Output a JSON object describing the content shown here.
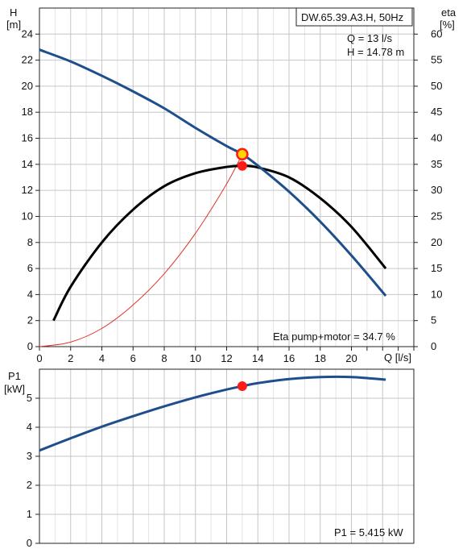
{
  "chart_data": [
    {
      "type": "line",
      "title": "DW.65.39.A3.H, 50Hz",
      "xlabel": "Q [l/s]",
      "ylabel_left_line1": "H",
      "ylabel_left_line2": "[m]",
      "ylabel_right_line1": "eta",
      "ylabel_right_line2": "[%]",
      "xlim": [
        0,
        24
      ],
      "ylim_left": [
        0,
        26
      ],
      "ylim_right": [
        0,
        65
      ],
      "x_ticks": [
        "0",
        "2",
        "4",
        "6",
        "8",
        "10",
        "12",
        "14",
        "16",
        "18",
        "20"
      ],
      "y_ticks_left": [
        "0",
        "2",
        "4",
        "6",
        "8",
        "10",
        "12",
        "14",
        "16",
        "18",
        "20",
        "22",
        "24"
      ],
      "y_ticks_right": [
        "0",
        "5",
        "10",
        "15",
        "20",
        "25",
        "30",
        "35",
        "40",
        "45",
        "50",
        "55",
        "60"
      ],
      "grid": true,
      "duty_text_q": "Q = 13 l/s",
      "duty_text_h": "H = 14.78 m",
      "eta_text": "Eta pump+motor = 34.7 %",
      "duty_point": {
        "q": 13,
        "h": 14.78,
        "eta": 34.7
      },
      "colors": {
        "head": "#1f4e8c",
        "eta": "#000000",
        "system": "#e0332a",
        "marker": "#ff1a1a",
        "marker_ring": "#ffd400"
      },
      "series": [
        {
          "key": "head",
          "axis": "left",
          "x": [
            0,
            2,
            4,
            6,
            8,
            10,
            12,
            13,
            14,
            16,
            18,
            20,
            22.2
          ],
          "y": [
            22.8,
            21.9,
            20.8,
            19.6,
            18.3,
            16.8,
            15.4,
            14.78,
            13.9,
            11.9,
            9.6,
            7.0,
            3.9
          ]
        },
        {
          "key": "eta",
          "axis": "right",
          "x": [
            0.9,
            2,
            4,
            6,
            8,
            10,
            12,
            13,
            14,
            16,
            18,
            20,
            22.2
          ],
          "y": [
            5,
            11.5,
            20,
            26.3,
            30.8,
            33.3,
            34.5,
            34.7,
            34.4,
            32.5,
            28.5,
            23,
            15
          ]
        },
        {
          "key": "system",
          "axis": "left",
          "x": [
            0,
            2,
            4,
            6,
            8,
            10,
            12,
            13
          ],
          "y": [
            0,
            0.35,
            1.4,
            3.2,
            5.6,
            8.7,
            12.5,
            14.78
          ]
        }
      ]
    },
    {
      "type": "line",
      "ylabel_line1": "P1",
      "ylabel_line2": "[kW]",
      "xlim": [
        0,
        24
      ],
      "ylim": [
        0,
        6
      ],
      "y_ticks": [
        "0",
        "1",
        "2",
        "3",
        "4",
        "5"
      ],
      "grid": true,
      "p1_text": "P1 = 5.415 kW",
      "duty_point": {
        "q": 13,
        "p1": 5.415
      },
      "colors": {
        "line": "#1f4e8c",
        "marker": "#ff1a1a"
      },
      "series": [
        {
          "key": "power",
          "x": [
            0,
            2,
            4,
            6,
            8,
            10,
            12,
            13,
            14,
            16,
            18,
            20,
            22.2
          ],
          "y": [
            3.2,
            3.62,
            4.02,
            4.38,
            4.72,
            5.03,
            5.3,
            5.415,
            5.52,
            5.66,
            5.73,
            5.73,
            5.64
          ]
        }
      ]
    }
  ]
}
